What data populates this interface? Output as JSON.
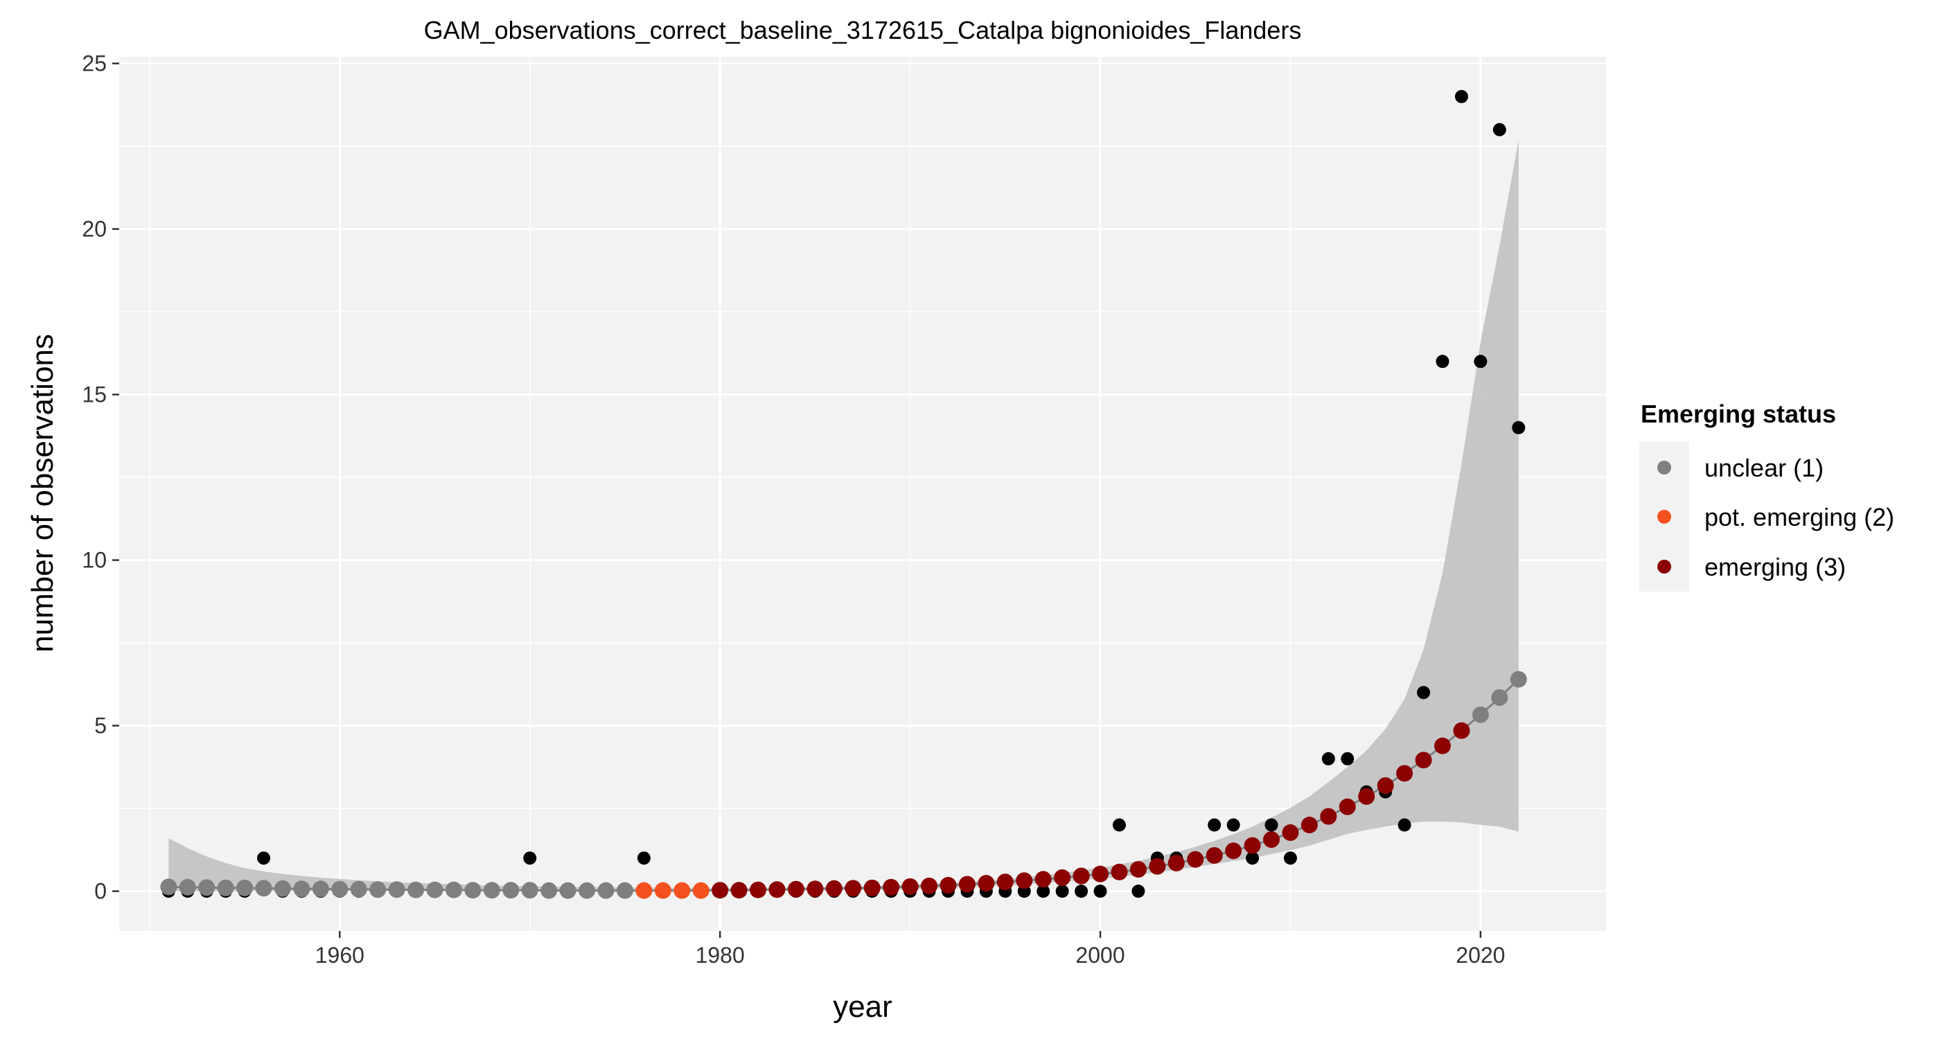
{
  "chart_data": {
    "type": "scatter",
    "title": "GAM_observations_correct_baseline_3172615_Catalpa bignonioides_Flanders",
    "xlabel": "year",
    "ylabel": "number of observations",
    "xlim": [
      1948.4,
      2026.6
    ],
    "ylim": [
      -1.2,
      25.2
    ],
    "x_ticks": [
      1960,
      1980,
      2000,
      2020
    ],
    "y_ticks": [
      0,
      5,
      10,
      15,
      20,
      25
    ],
    "grid": true,
    "background": "#f2f2f2",
    "legend": {
      "title": "Emerging status",
      "position": "right",
      "items": [
        {
          "label": "unclear (1)",
          "color": "#7f7f7f"
        },
        {
          "label": "pot. emerging (2)",
          "color": "#f4511e"
        },
        {
          "label": "emerging (3)",
          "color": "#8b0000"
        }
      ]
    },
    "observations": {
      "color": "#000000",
      "x": [
        1951,
        1952,
        1953,
        1954,
        1955,
        1956,
        1957,
        1958,
        1959,
        1960,
        1961,
        1962,
        1963,
        1964,
        1965,
        1966,
        1967,
        1968,
        1969,
        1970,
        1971,
        1972,
        1973,
        1974,
        1975,
        1976,
        1977,
        1978,
        1979,
        1980,
        1981,
        1982,
        1983,
        1984,
        1985,
        1986,
        1987,
        1988,
        1989,
        1990,
        1991,
        1992,
        1993,
        1994,
        1995,
        1996,
        1997,
        1998,
        1999,
        2000,
        2001,
        2002,
        2003,
        2004,
        2005,
        2006,
        2007,
        2008,
        2009,
        2010,
        2011,
        2012,
        2013,
        2014,
        2015,
        2016,
        2017,
        2018,
        2019,
        2020,
        2021,
        2022
      ],
      "y": [
        0,
        0,
        0,
        0,
        0,
        1,
        0,
        0,
        0,
        0,
        0,
        0,
        0,
        0,
        0,
        0,
        0,
        0,
        0,
        1,
        0,
        0,
        0,
        0,
        0,
        1,
        0,
        0,
        0,
        0,
        0,
        0,
        0,
        0,
        0,
        0,
        0,
        0,
        0,
        0,
        0,
        0,
        0,
        0,
        0,
        0,
        0,
        0,
        0,
        0,
        2,
        0,
        1,
        1,
        1,
        2,
        2,
        1,
        2,
        1,
        2,
        4,
        4,
        3,
        3,
        2,
        6,
        16,
        24,
        16,
        23,
        14
      ]
    },
    "fit": {
      "line_color": "#7f7f7f",
      "band_color": "#bebebe",
      "x": [
        1951,
        1952,
        1953,
        1954,
        1955,
        1956,
        1957,
        1958,
        1959,
        1960,
        1961,
        1962,
        1963,
        1964,
        1965,
        1966,
        1967,
        1968,
        1969,
        1970,
        1971,
        1972,
        1973,
        1974,
        1975,
        1976,
        1977,
        1978,
        1979,
        1980,
        1981,
        1982,
        1983,
        1984,
        1985,
        1986,
        1987,
        1988,
        1989,
        1990,
        1991,
        1992,
        1993,
        1994,
        1995,
        1996,
        1997,
        1998,
        1999,
        2000,
        2001,
        2002,
        2003,
        2004,
        2005,
        2006,
        2007,
        2008,
        2009,
        2010,
        2011,
        2012,
        2013,
        2014,
        2015,
        2016,
        2017,
        2018,
        2019,
        2020,
        2021,
        2022
      ],
      "y": [
        0.13,
        0.12,
        0.11,
        0.1,
        0.1,
        0.09,
        0.08,
        0.07,
        0.07,
        0.06,
        0.06,
        0.05,
        0.05,
        0.04,
        0.04,
        0.04,
        0.03,
        0.03,
        0.03,
        0.03,
        0.02,
        0.02,
        0.02,
        0.02,
        0.02,
        0.02,
        0.02,
        0.02,
        0.02,
        0.03,
        0.03,
        0.04,
        0.05,
        0.06,
        0.07,
        0.08,
        0.09,
        0.1,
        0.12,
        0.14,
        0.16,
        0.18,
        0.21,
        0.24,
        0.28,
        0.32,
        0.36,
        0.41,
        0.46,
        0.52,
        0.58,
        0.66,
        0.75,
        0.85,
        0.96,
        1.08,
        1.22,
        1.38,
        1.56,
        1.77,
        2.0,
        2.26,
        2.55,
        2.86,
        3.19,
        3.56,
        3.96,
        4.39,
        4.85,
        5.33,
        5.85,
        6.4
      ],
      "status": [
        1,
        1,
        1,
        1,
        1,
        1,
        1,
        1,
        1,
        1,
        1,
        1,
        1,
        1,
        1,
        1,
        1,
        1,
        1,
        1,
        1,
        1,
        1,
        1,
        1,
        2,
        2,
        2,
        2,
        3,
        3,
        3,
        3,
        3,
        3,
        3,
        3,
        3,
        3,
        3,
        3,
        3,
        3,
        3,
        3,
        3,
        3,
        3,
        3,
        3,
        3,
        3,
        3,
        3,
        3,
        3,
        3,
        3,
        3,
        3,
        3,
        3,
        3,
        3,
        3,
        3,
        3,
        3,
        3,
        1,
        1,
        1
      ],
      "upper": [
        1.6,
        1.3,
        1.05,
        0.85,
        0.7,
        0.6,
        0.52,
        0.46,
        0.41,
        0.37,
        0.33,
        0.3,
        0.27,
        0.25,
        0.23,
        0.21,
        0.19,
        0.17,
        0.16,
        0.15,
        0.14,
        0.13,
        0.12,
        0.12,
        0.11,
        0.11,
        0.11,
        0.1,
        0.1,
        0.1,
        0.1,
        0.11,
        0.11,
        0.12,
        0.13,
        0.14,
        0.15,
        0.16,
        0.18,
        0.2,
        0.22,
        0.25,
        0.28,
        0.32,
        0.37,
        0.42,
        0.48,
        0.55,
        0.63,
        0.71,
        0.81,
        0.92,
        1.04,
        1.18,
        1.34,
        1.52,
        1.72,
        1.95,
        2.22,
        2.52,
        2.86,
        3.3,
        3.75,
        4.25,
        4.9,
        5.8,
        7.3,
        9.6,
        12.9,
        16.6,
        19.5,
        22.7
      ],
      "lower": [
        0.0,
        0.0,
        0.0,
        0.0,
        0.0,
        0.0,
        0.0,
        0.0,
        0.0,
        0.0,
        0.0,
        0.0,
        0.0,
        0.0,
        0.0,
        0.0,
        0.0,
        0.0,
        0.0,
        0.0,
        0.0,
        0.0,
        0.0,
        0.0,
        0.0,
        0.0,
        0.0,
        0.0,
        0.0,
        0.0,
        0.0,
        0.0,
        0.01,
        0.01,
        0.02,
        0.02,
        0.03,
        0.04,
        0.05,
        0.06,
        0.08,
        0.1,
        0.12,
        0.15,
        0.18,
        0.21,
        0.25,
        0.29,
        0.33,
        0.38,
        0.43,
        0.5,
        0.57,
        0.65,
        0.73,
        0.82,
        0.91,
        1.0,
        1.12,
        1.24,
        1.38,
        1.55,
        1.73,
        1.85,
        1.95,
        2.05,
        2.1,
        2.1,
        2.08,
        2.0,
        1.95,
        1.8
      ]
    }
  }
}
